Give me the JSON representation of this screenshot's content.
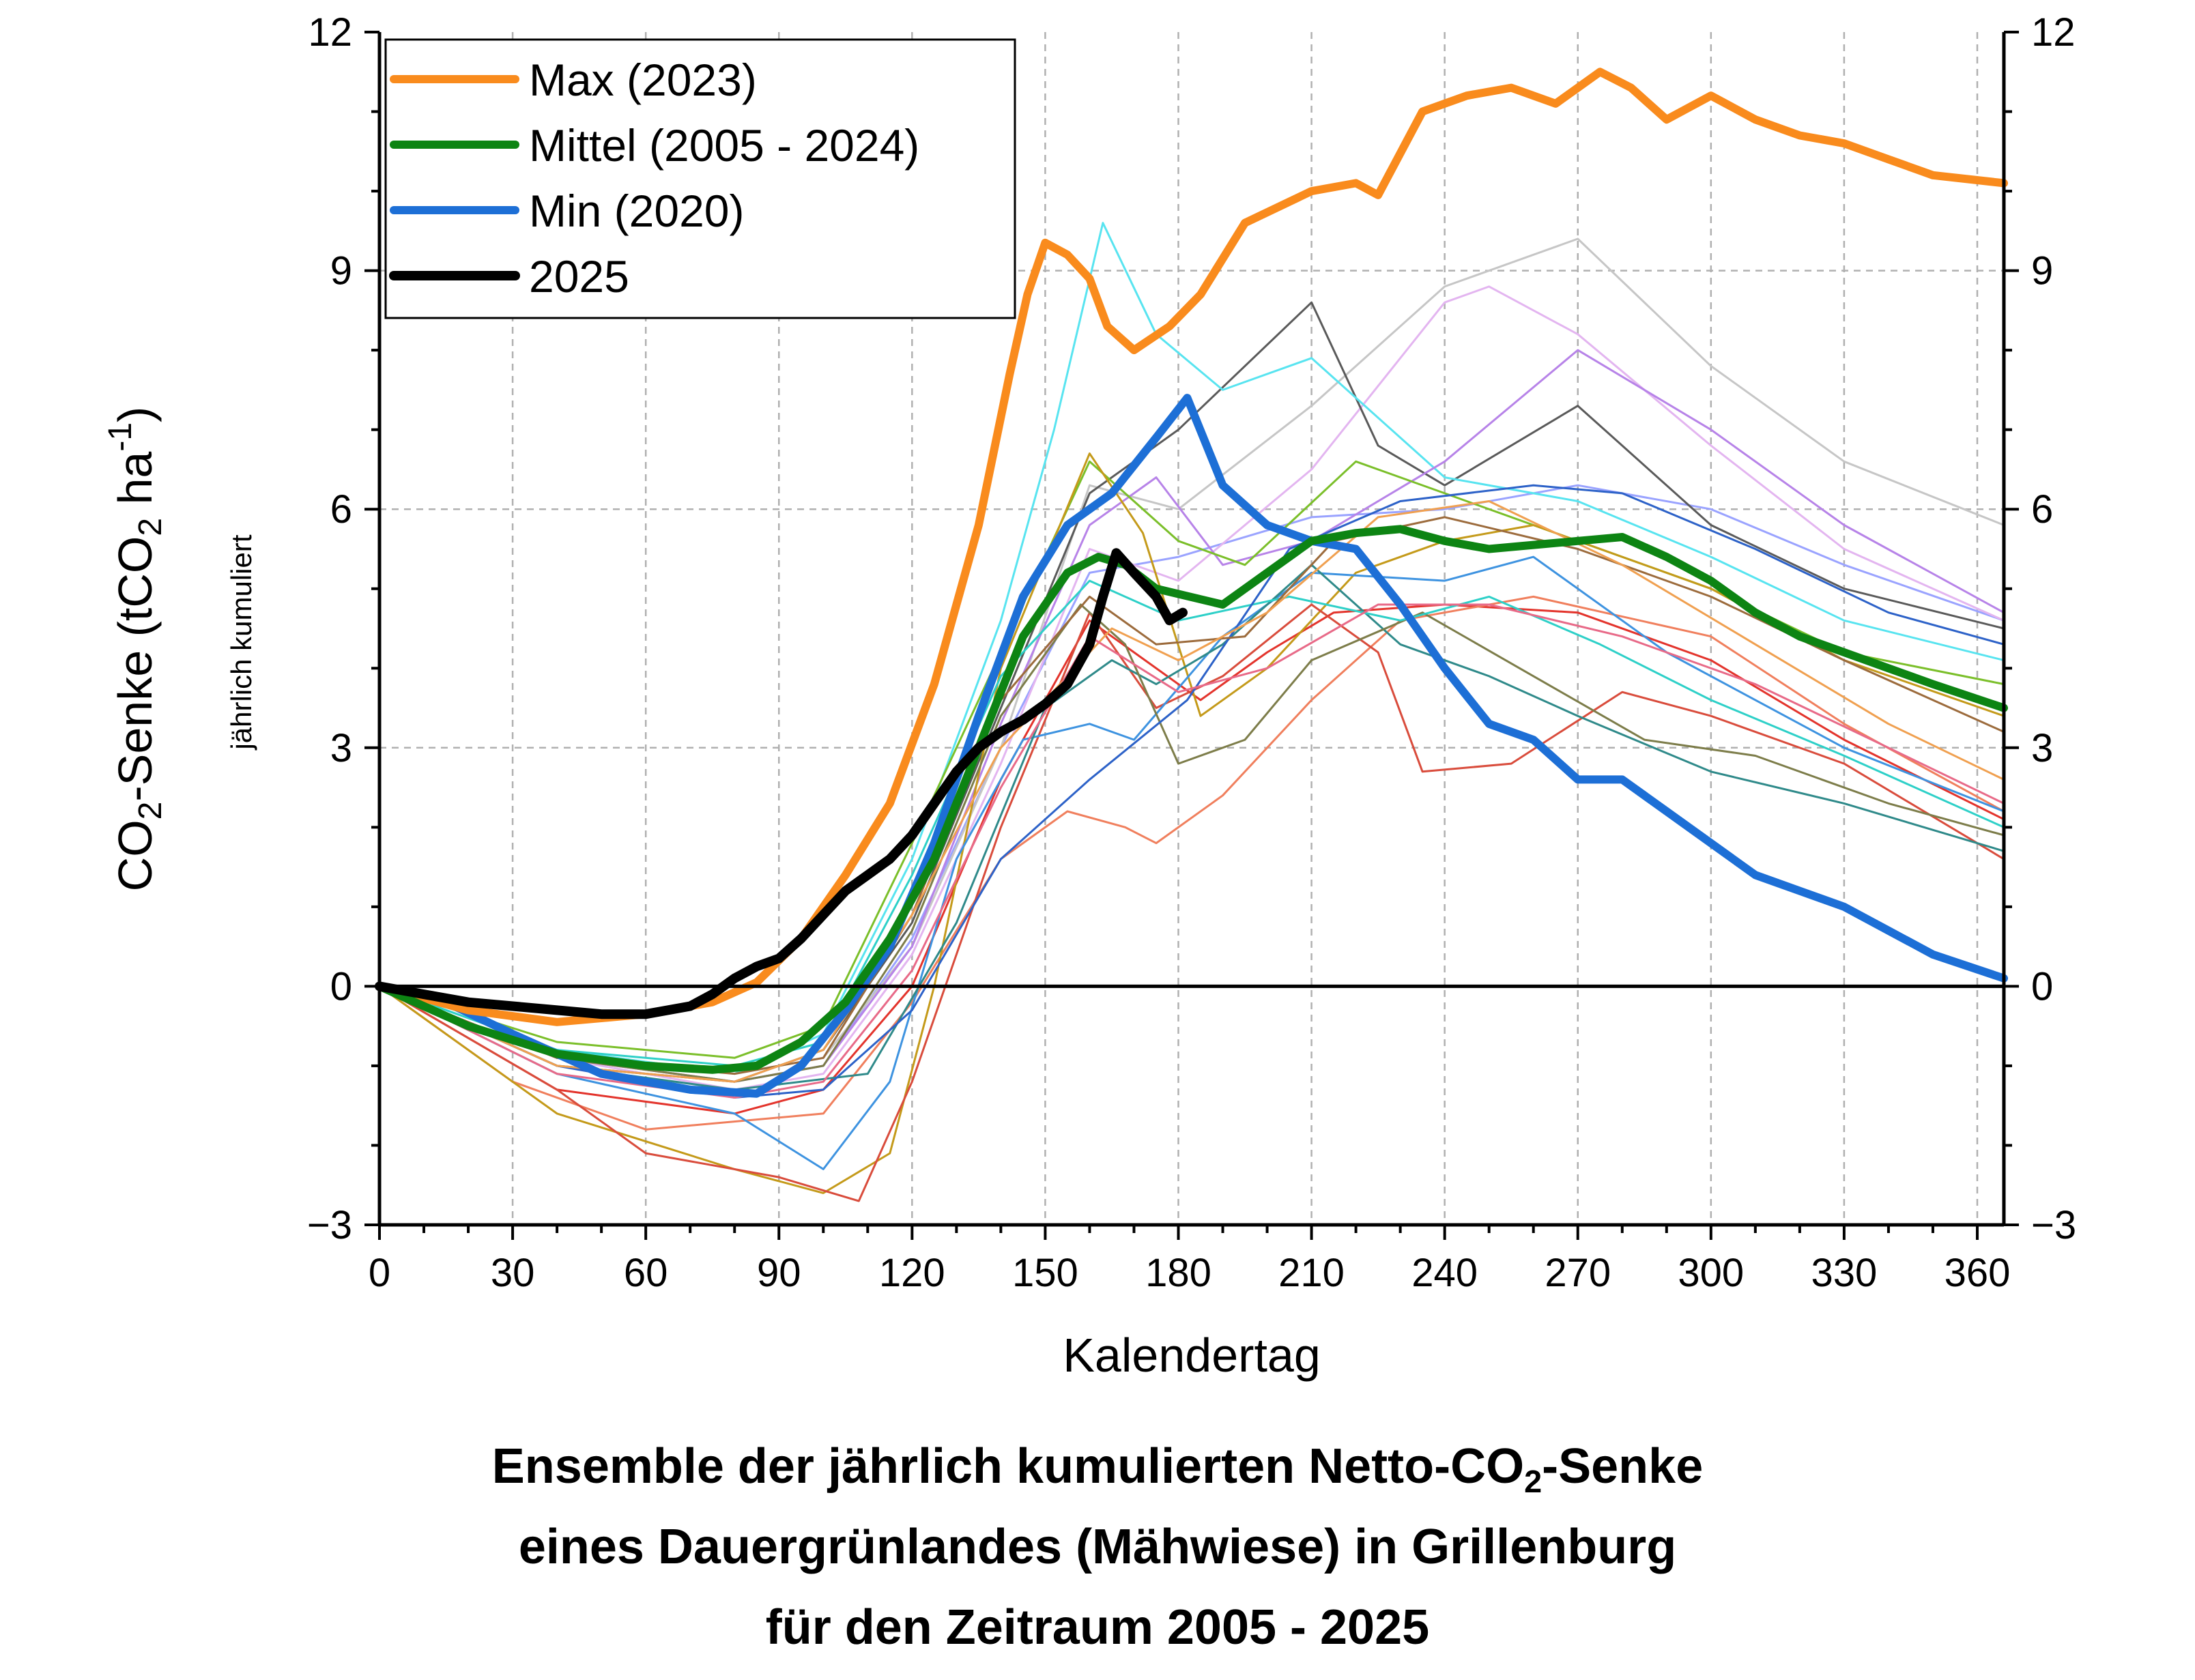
{
  "chart_data": {
    "type": "line",
    "xlabel": "Kalendertag",
    "ylabel_parts": [
      "CO",
      "2",
      "-Senke (tCO",
      "2",
      " ha",
      "-1",
      ")"
    ],
    "ylabel_sub": "jährlich kumuliert",
    "xlim": [
      0,
      366
    ],
    "ylim": [
      -3,
      12
    ],
    "xticks": [
      0,
      30,
      60,
      90,
      120,
      150,
      180,
      210,
      240,
      270,
      300,
      330,
      360
    ],
    "xtick_labels": [
      "0",
      "30",
      "60",
      "90",
      "120",
      "150",
      "180",
      "210",
      "240",
      "270",
      "300",
      "330",
      "360"
    ],
    "yticks": [
      -3,
      0,
      3,
      6,
      9,
      12
    ],
    "ytick_labels": [
      "−3",
      "0",
      "3",
      "6",
      "9",
      "12"
    ],
    "grid": true,
    "legend_position": "top-left",
    "series": [
      {
        "name": "Max (2023)",
        "color": "#f98b1d",
        "width": 12,
        "x": [
          0,
          20,
          40,
          60,
          75,
          85,
          95,
          105,
          115,
          125,
          135,
          142,
          146,
          150,
          155,
          160,
          164,
          170,
          178,
          185,
          195,
          210,
          220,
          225,
          235,
          245,
          255,
          265,
          275,
          282,
          290,
          300,
          310,
          320,
          330,
          340,
          350,
          366
        ],
        "values": [
          0,
          -0.3,
          -0.45,
          -0.35,
          -0.2,
          0.05,
          0.6,
          1.4,
          2.3,
          3.8,
          5.8,
          7.7,
          8.7,
          9.35,
          9.2,
          8.9,
          8.3,
          8.0,
          8.3,
          8.7,
          9.6,
          10.0,
          10.1,
          9.95,
          11.0,
          11.2,
          11.3,
          11.1,
          11.5,
          11.3,
          10.9,
          11.2,
          10.9,
          10.7,
          10.6,
          10.4,
          10.2,
          10.1
        ]
      },
      {
        "name": "Mittel (2005 - 2024)",
        "color": "#0d8413",
        "width": 12,
        "x": [
          0,
          20,
          40,
          60,
          75,
          85,
          95,
          105,
          115,
          125,
          135,
          145,
          155,
          162,
          168,
          175,
          190,
          200,
          210,
          220,
          230,
          240,
          250,
          260,
          270,
          280,
          290,
          300,
          310,
          320,
          330,
          340,
          350,
          366
        ],
        "values": [
          0,
          -0.5,
          -0.85,
          -1.0,
          -1.05,
          -1.0,
          -0.7,
          -0.2,
          0.6,
          1.6,
          3.0,
          4.4,
          5.2,
          5.4,
          5.3,
          5.0,
          4.8,
          5.2,
          5.6,
          5.7,
          5.75,
          5.6,
          5.5,
          5.55,
          5.6,
          5.65,
          5.4,
          5.1,
          4.7,
          4.4,
          4.2,
          4.0,
          3.8,
          3.5
        ]
      },
      {
        "name": "Min (2020)",
        "color": "#1d6fd6",
        "width": 12,
        "x": [
          0,
          15,
          30,
          50,
          70,
          85,
          95,
          105,
          115,
          125,
          135,
          145,
          155,
          165,
          175,
          182,
          190,
          200,
          210,
          220,
          230,
          240,
          250,
          260,
          270,
          280,
          290,
          300,
          310,
          320,
          330,
          340,
          350,
          366
        ],
        "values": [
          0,
          -0.2,
          -0.6,
          -1.1,
          -1.3,
          -1.35,
          -1.0,
          -0.3,
          0.5,
          1.8,
          3.4,
          4.9,
          5.8,
          6.2,
          6.9,
          7.4,
          6.3,
          5.8,
          5.6,
          5.5,
          4.8,
          4.0,
          3.3,
          3.1,
          2.6,
          2.6,
          2.2,
          1.8,
          1.4,
          1.2,
          1.0,
          0.7,
          0.4,
          0.1
        ]
      },
      {
        "name": "2025",
        "color": "#000000",
        "width": 14,
        "x": [
          0,
          10,
          20,
          30,
          40,
          50,
          60,
          70,
          75,
          80,
          85,
          90,
          95,
          100,
          105,
          110,
          115,
          120,
          125,
          130,
          135,
          140,
          145,
          150,
          155,
          160,
          163,
          166,
          170,
          175,
          178,
          181
        ],
        "values": [
          0,
          -0.1,
          -0.2,
          -0.25,
          -0.3,
          -0.35,
          -0.35,
          -0.25,
          -0.1,
          0.1,
          0.25,
          0.35,
          0.6,
          0.9,
          1.2,
          1.4,
          1.6,
          1.9,
          2.3,
          2.7,
          3.0,
          3.2,
          3.35,
          3.55,
          3.8,
          4.3,
          4.9,
          5.45,
          5.2,
          4.9,
          4.6,
          4.7
        ]
      }
    ],
    "background_lines": [
      {
        "color": "#9aa3ff",
        "x": [
          0,
          40,
          80,
          100,
          120,
          140,
          160,
          180,
          210,
          240,
          270,
          300,
          330,
          366
        ],
        "values": [
          0,
          -0.9,
          -1.2,
          -1.0,
          0.6,
          3.0,
          5.2,
          5.4,
          5.9,
          6.0,
          6.3,
          6.0,
          5.3,
          4.6
        ]
      },
      {
        "color": "#c6c6c6",
        "x": [
          0,
          40,
          80,
          100,
          120,
          140,
          160,
          180,
          210,
          240,
          270,
          300,
          330,
          366
        ],
        "values": [
          0,
          -0.8,
          -1.1,
          -0.9,
          0.5,
          3.0,
          6.3,
          6.0,
          7.3,
          8.8,
          9.4,
          7.8,
          6.6,
          5.8
        ]
      },
      {
        "color": "#e3b5f0",
        "x": [
          0,
          40,
          80,
          100,
          120,
          140,
          160,
          180,
          210,
          240,
          250,
          270,
          300,
          330,
          366
        ],
        "values": [
          0,
          -0.9,
          -1.3,
          -1.1,
          0.4,
          2.8,
          5.5,
          5.1,
          6.5,
          8.6,
          8.8,
          8.2,
          6.8,
          5.5,
          4.6
        ]
      },
      {
        "color": "#5a5a5a",
        "x": [
          0,
          40,
          80,
          100,
          120,
          140,
          160,
          180,
          195,
          210,
          225,
          240,
          270,
          300,
          330,
          366
        ],
        "values": [
          0,
          -1.0,
          -1.2,
          -0.8,
          0.8,
          3.5,
          6.2,
          7.0,
          7.8,
          8.6,
          6.8,
          6.3,
          7.3,
          5.8,
          5.0,
          4.5
        ]
      },
      {
        "color": "#58e4f0",
        "x": [
          0,
          40,
          80,
          100,
          120,
          140,
          152,
          163,
          175,
          190,
          210,
          240,
          270,
          300,
          330,
          366
        ],
        "values": [
          0,
          -0.8,
          -1.1,
          -0.6,
          1.6,
          4.6,
          7.0,
          9.6,
          8.2,
          7.5,
          7.9,
          6.4,
          6.1,
          5.4,
          4.6,
          4.1
        ]
      },
      {
        "color": "#b783e8",
        "x": [
          0,
          40,
          80,
          100,
          120,
          140,
          160,
          175,
          190,
          210,
          240,
          270,
          300,
          330,
          366
        ],
        "values": [
          0,
          -0.9,
          -1.2,
          -1.0,
          0.5,
          3.3,
          5.8,
          6.4,
          5.3,
          5.6,
          6.6,
          8.0,
          7.0,
          5.8,
          4.7
        ]
      },
      {
        "color": "#7bbf2a",
        "x": [
          0,
          40,
          80,
          100,
          120,
          140,
          160,
          180,
          195,
          220,
          240,
          270,
          300,
          330,
          366
        ],
        "values": [
          0,
          -0.7,
          -0.9,
          -0.5,
          1.8,
          4.2,
          6.6,
          5.6,
          5.3,
          6.6,
          6.2,
          5.6,
          5.0,
          4.2,
          3.8
        ]
      },
      {
        "color": "#e3342c",
        "x": [
          0,
          40,
          80,
          100,
          120,
          140,
          160,
          170,
          185,
          200,
          215,
          240,
          270,
          300,
          330,
          366
        ],
        "values": [
          0,
          -1.3,
          -1.6,
          -1.3,
          0.0,
          2.6,
          4.6,
          4.2,
          3.6,
          4.2,
          4.7,
          4.8,
          4.7,
          4.1,
          3.1,
          2.1
        ]
      },
      {
        "color": "#f07f5d",
        "x": [
          0,
          30,
          60,
          100,
          120,
          140,
          155,
          168,
          175,
          190,
          210,
          230,
          260,
          300,
          330,
          366
        ],
        "values": [
          0,
          -1.2,
          -1.8,
          -1.6,
          -0.2,
          1.6,
          2.2,
          2.0,
          1.8,
          2.4,
          3.6,
          4.6,
          4.9,
          4.4,
          3.3,
          2.2
        ]
      },
      {
        "color": "#c49a1a",
        "x": [
          0,
          40,
          80,
          100,
          115,
          125,
          140,
          160,
          172,
          185,
          200,
          220,
          240,
          260,
          300,
          330,
          366
        ],
        "values": [
          0,
          -1.6,
          -2.3,
          -2.6,
          -2.1,
          0.0,
          4.0,
          6.7,
          5.7,
          3.4,
          4.0,
          5.2,
          5.6,
          5.8,
          5.0,
          4.1,
          3.4
        ]
      },
      {
        "color": "#d94c3c",
        "x": [
          0,
          40,
          60,
          90,
          108,
          120,
          140,
          160,
          175,
          190,
          210,
          225,
          235,
          255,
          280,
          300,
          330,
          366
        ],
        "values": [
          0,
          -1.3,
          -2.1,
          -2.4,
          -2.7,
          -1.2,
          2.0,
          4.7,
          3.5,
          3.9,
          4.8,
          4.2,
          2.7,
          2.8,
          3.7,
          3.4,
          2.8,
          1.6
        ]
      },
      {
        "color": "#3e93e0",
        "x": [
          0,
          40,
          80,
          100,
          115,
          130,
          145,
          160,
          170,
          190,
          210,
          240,
          260,
          290,
          330,
          366
        ],
        "values": [
          0,
          -1.1,
          -1.6,
          -2.3,
          -1.2,
          1.6,
          3.1,
          3.3,
          3.1,
          4.4,
          5.2,
          5.1,
          5.4,
          4.2,
          3.0,
          2.2
        ]
      },
      {
        "color": "#2f8a8a",
        "x": [
          0,
          40,
          80,
          110,
          130,
          150,
          165,
          175,
          190,
          210,
          230,
          250,
          270,
          300,
          330,
          366
        ],
        "values": [
          0,
          -1.0,
          -1.3,
          -1.1,
          0.8,
          3.5,
          4.1,
          3.8,
          4.3,
          5.3,
          4.3,
          3.9,
          3.4,
          2.7,
          2.3,
          1.7
        ]
      },
      {
        "color": "#7d7d4a",
        "x": [
          0,
          40,
          80,
          100,
          120,
          140,
          158,
          168,
          180,
          195,
          210,
          235,
          260,
          285,
          310,
          340,
          366
        ],
        "values": [
          0,
          -0.9,
          -1.2,
          -1.0,
          0.7,
          3.4,
          4.8,
          4.3,
          2.8,
          3.1,
          4.1,
          4.7,
          3.9,
          3.1,
          2.9,
          2.3,
          1.9
        ]
      },
      {
        "color": "#2ed0c8",
        "x": [
          0,
          40,
          80,
          100,
          120,
          140,
          160,
          180,
          205,
          230,
          250,
          275,
          300,
          330,
          366
        ],
        "values": [
          0,
          -0.8,
          -1.0,
          -0.7,
          1.4,
          3.9,
          5.1,
          4.6,
          4.9,
          4.6,
          4.9,
          4.3,
          3.6,
          2.9,
          2.0
        ]
      },
      {
        "color": "#2d62c8",
        "x": [
          0,
          40,
          80,
          100,
          120,
          140,
          160,
          182,
          205,
          230,
          260,
          280,
          310,
          340,
          366
        ],
        "values": [
          0,
          -1.0,
          -1.4,
          -1.3,
          -0.3,
          1.6,
          2.6,
          3.6,
          5.5,
          6.1,
          6.3,
          6.2,
          5.5,
          4.7,
          4.3
        ]
      },
      {
        "color": "#9c6b3c",
        "x": [
          0,
          40,
          80,
          100,
          120,
          140,
          160,
          175,
          195,
          215,
          240,
          270,
          300,
          330,
          366
        ],
        "values": [
          0,
          -0.9,
          -1.1,
          -0.9,
          0.9,
          3.6,
          4.9,
          4.3,
          4.4,
          5.6,
          5.9,
          5.5,
          4.9,
          4.1,
          3.2
        ]
      },
      {
        "color": "#f0a050",
        "x": [
          0,
          40,
          80,
          100,
          120,
          140,
          165,
          180,
          200,
          225,
          250,
          280,
          310,
          340,
          366
        ],
        "values": [
          0,
          -1.0,
          -1.2,
          -0.8,
          0.9,
          3.0,
          4.5,
          4.1,
          4.7,
          5.9,
          6.1,
          5.3,
          4.3,
          3.3,
          2.6
        ]
      },
      {
        "color": "#e86a88",
        "x": [
          0,
          40,
          80,
          100,
          120,
          140,
          160,
          180,
          200,
          225,
          250,
          280,
          310,
          340,
          366
        ],
        "values": [
          0,
          -1.1,
          -1.4,
          -1.2,
          0.2,
          2.5,
          4.4,
          3.7,
          4.0,
          4.8,
          4.8,
          4.4,
          3.8,
          3.0,
          2.3
        ]
      }
    ]
  },
  "caption": {
    "line1_a": "Ensemble der jährlich kumulierten Netto-CO",
    "line1_sub": "2",
    "line1_b": "-Senke",
    "line2": "eines Dauergrünlandes (Mähwiese) in Grillenburg",
    "line3": "für den Zeitraum 2005 - 2025"
  }
}
